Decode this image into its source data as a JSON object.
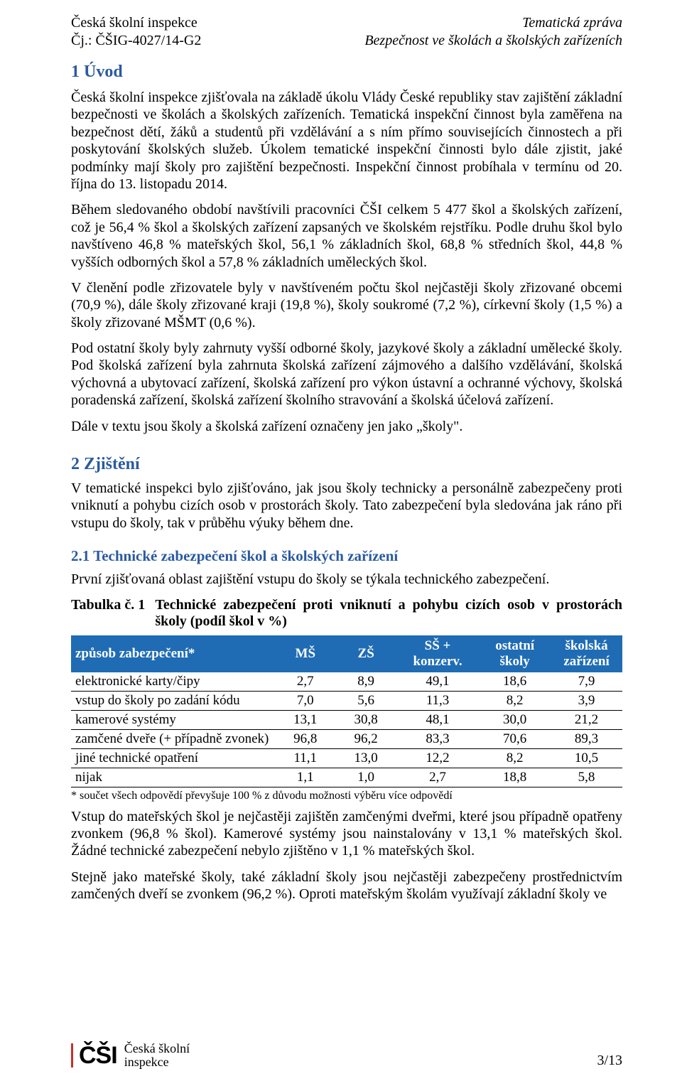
{
  "header": {
    "left_top": "Česká školní inspekce",
    "left_bottom": "Čj.: ČŠIG-4027/14-G2",
    "right_top": "Tematická zpráva",
    "right_bottom": "Bezpečnost ve školách a školských zařízeních"
  },
  "sections": {
    "uvod_title": "1  Úvod",
    "uvod_p1": "Česká školní inspekce zjišťovala na základě úkolu Vlády České republiky stav zajištění základní bezpečnosti ve školách a školských zařízeních. Tematická inspekční činnost byla zaměřena na bezpečnost dětí, žáků a studentů při vzdělávání a s ním přímo souvisejících činnostech a při poskytování školských služeb. Úkolem tematické inspekční činnosti bylo dále zjistit, jaké podmínky mají školy pro zajištění bezpečnosti. Inspekční činnost probíhala v termínu od 20. října do 13. listopadu 2014.",
    "uvod_p2": "Během sledovaného období navštívili pracovníci ČŠI celkem 5 477 škol a školských zařízení, což je 56,4 % škol a školských zařízení zapsaných ve školském rejstříku. Podle druhu škol bylo navštíveno 46,8 % mateřských škol, 56,1 % základních škol, 68,8 % středních škol, 44,8 % vyšších odborných škol a 57,8 % základních uměleckých škol.",
    "uvod_p3": "V členění podle zřizovatele byly v navštíveném počtu škol nejčastěji školy zřizované obcemi (70,9 %), dále školy zřizované kraji (19,8 %), školy soukromé (7,2 %), církevní školy (1,5 %) a školy zřizované MŠMT (0,6 %).",
    "uvod_p4": "Pod ostatní školy byly zahrnuty vyšší odborné školy, jazykové školy a základní umělecké školy. Pod školská zařízení byla zahrnuta školská zařízení zájmového a dalšího vzdělávání, školská výchovná a ubytovací zařízení, školská zařízení pro výkon ústavní a ochranné výchovy, školská poradenská zařízení, školská zařízení školního stravování a školská účelová zařízení.",
    "uvod_p5": "Dále v textu jsou školy a školská zařízení označeny jen jako „školy\".",
    "zj_title": "2  Zjištění",
    "zj_p1": "V tematické inspekci bylo zjišťováno, jak jsou školy technicky a personálně zabezpečeny proti vniknutí a pohybu cizích osob v prostorách školy. Tato zabezpečení byla sledována jak ráno při vstupu do školy, tak v průběhu výuky během dne.",
    "sub21": "2.1     Technické zabezpečení škol a školských zařízení",
    "sub21_intro": "První zjišťovaná oblast zajištění vstupu do školy se týkala technického zabezpečení.",
    "after_p1": "Vstup do mateřských škol je nejčastěji zajištěn zamčenými dveřmi, které jsou případně opatřeny zvonkem (96,8 % škol). Kamerové systémy jsou nainstalovány v 13,1 % mateřských škol. Žádné technické zabezpečení nebylo zjištěno v 1,1 % mateřských škol.",
    "after_p2": "Stejně jako mateřské školy, také základní školy jsou nejčastěji zabezpečeny prostřednictvím zamčených dveří se zvonkem (96,2 %). Oproti mateřským školám využívají základní školy ve"
  },
  "table1": {
    "caption_lead": "Tabulka č. 1",
    "caption_rest": "Technické zabezpečení proti vniknutí a pohybu cizích osob v prostorách školy (podíl škol v %)",
    "header_bg": "#1f6cb4",
    "header_fg": "#ffffff",
    "columns": [
      "způsob zabezpečení*",
      "MŠ",
      "ZŠ",
      "SŠ + konzerv.",
      "ostatní školy",
      "školská zařízení"
    ],
    "col_widths_pct": [
      37,
      11,
      11,
      15,
      13,
      13
    ],
    "rows": [
      [
        "elektronické karty/čipy",
        "2,7",
        "8,9",
        "49,1",
        "18,6",
        "7,9"
      ],
      [
        "vstup do školy po zadání kódu",
        "7,0",
        "5,6",
        "11,3",
        "8,2",
        "3,9"
      ],
      [
        "kamerové systémy",
        "13,1",
        "30,8",
        "48,1",
        "30,0",
        "21,2"
      ],
      [
        "zamčené dveře (+ případně zvonek)",
        "96,8",
        "96,2",
        "83,3",
        "70,6",
        "89,3"
      ],
      [
        "jiné technické opatření",
        "11,1",
        "13,0",
        "12,2",
        "8,2",
        "10,5"
      ],
      [
        "nijak",
        "1,1",
        "1,0",
        "2,7",
        "18,8",
        "5,8"
      ]
    ],
    "footnote": "* součet všech odpovědí převyšuje 100 % z důvodu možnosti výběru více odpovědí"
  },
  "footer": {
    "logo_mark": "ČŠI",
    "logo_line1": "Česká školní",
    "logo_line2": "inspekce",
    "page": "3/13"
  }
}
